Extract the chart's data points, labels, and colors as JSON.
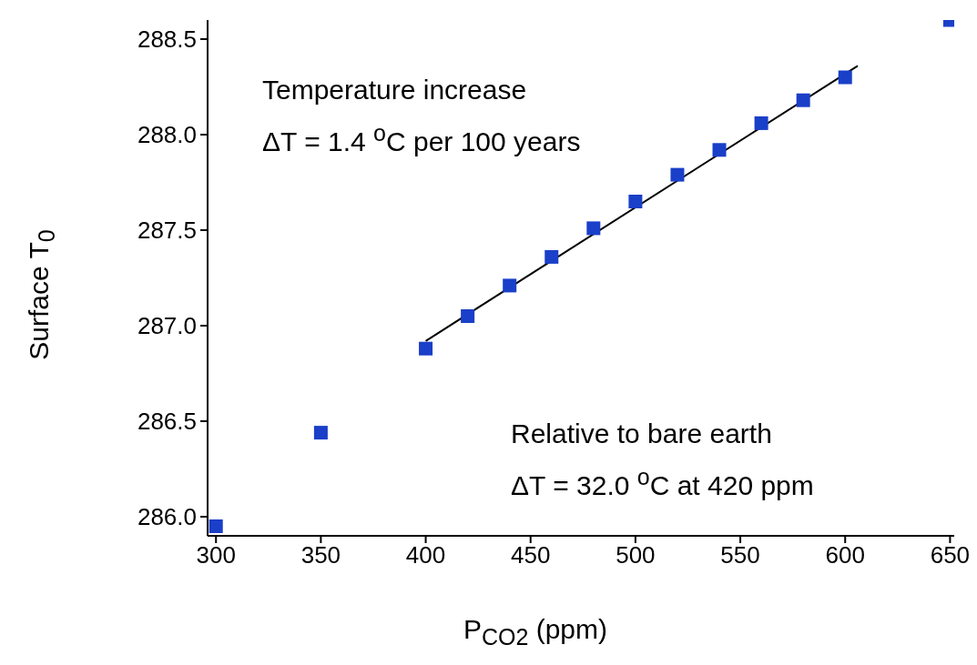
{
  "chart_data": {
    "type": "scatter",
    "xlabel": "P$_{CO2}$ (ppm)",
    "ylabel": "Surface T$_{0}$",
    "marker": "square",
    "xlim": [
      296,
      652
    ],
    "xticks": [
      300,
      350,
      400,
      450,
      500,
      550,
      600,
      650
    ],
    "ylim": [
      285.9,
      288.6
    ],
    "yticks": [
      {
        "value": 286,
        "label": "286.0"
      },
      286.5,
      {
        "value": 287,
        "label": "287.0"
      },
      287.5,
      {
        "value": 288,
        "label": "288.0"
      },
      288.5
    ],
    "x": [
      300,
      350,
      400,
      420,
      440,
      460,
      480,
      500,
      520,
      540,
      560,
      580,
      600,
      650
    ],
    "series": [
      {
        "color": "#1a3fc8",
        "values": [
          285.95,
          286.44,
          286.88,
          287.05,
          287.21,
          287.36,
          287.51,
          287.65,
          287.79,
          287.92,
          288.06,
          288.18,
          288.3,
          288.6
        ]
      },
      {
        "type": "line",
        "color": "#000000",
        "x": [
          400,
          606
        ],
        "values": [
          286.92,
          288.36
        ],
        "marker": "none",
        "line_style": "solid"
      }
    ],
    "annotations": [
      "Temperature increase",
      "ΔT = 1.4 $^{o}$C per 100 years",
      "Relative to bare earth",
      "ΔT = 32.0 $^{o}$C at 420 ppm"
    ]
  }
}
